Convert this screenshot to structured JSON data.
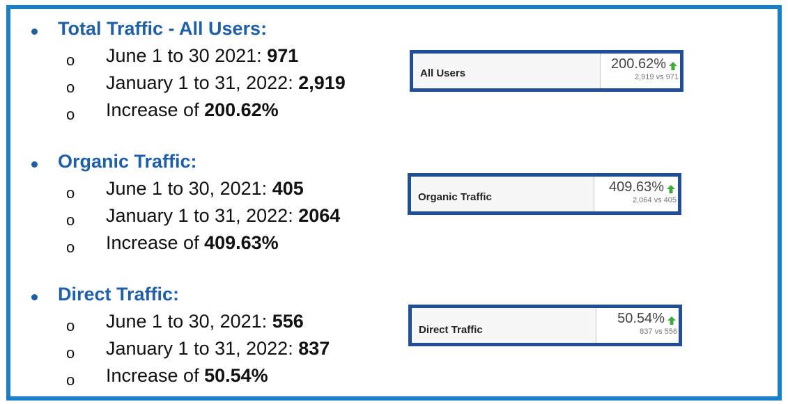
{
  "sections": [
    {
      "heading": "Total Traffic - All Users:",
      "items": [
        {
          "prefix": "June 1 to 30 2021: ",
          "value": "971",
          "suffix": ""
        },
        {
          "prefix": "January 1 to 31, 2022: ",
          "value": "2,919",
          "suffix": ""
        },
        {
          "prefix": "Increase of ",
          "value": "200.62%",
          "suffix": ""
        }
      ],
      "card": {
        "label": "All Users",
        "percent": "200.62%",
        "comparison": "2,919 vs 971"
      }
    },
    {
      "heading": "Organic Traffic:",
      "items": [
        {
          "prefix": "June 1 to 30, 2021: ",
          "value": "405",
          "suffix": ""
        },
        {
          "prefix": "January 1 to 31, 2022: ",
          "value": "2064",
          "suffix": ""
        },
        {
          "prefix": "Increase of ",
          "value": "409.63%",
          "suffix": ""
        }
      ],
      "card": {
        "label": "Organic Traffic",
        "percent": "409.63%",
        "comparison": "2,064 vs 405"
      }
    },
    {
      "heading": "Direct Traffic:",
      "items": [
        {
          "prefix": "June 1 to 30, 2021: ",
          "value": "556",
          "suffix": ""
        },
        {
          "prefix": "January 1 to 31, 2022: ",
          "value": "837",
          "suffix": ""
        },
        {
          "prefix": "Increase of ",
          "value": "50.54%",
          "suffix": ""
        }
      ],
      "card": {
        "label": "Direct Traffic",
        "percent": "50.54%",
        "comparison": "837 vs 556"
      }
    }
  ],
  "sub_bullet_glyph": "o",
  "colors": {
    "frame_border": "#1a7fc6",
    "heading": "#1f5fa8",
    "card_border": "#1f4f96",
    "up_arrow": "#3cab3c"
  },
  "icons": {
    "bullet": "filled-circle",
    "sub_bullet": "hollow-o",
    "trend": "green-up-arrow"
  }
}
